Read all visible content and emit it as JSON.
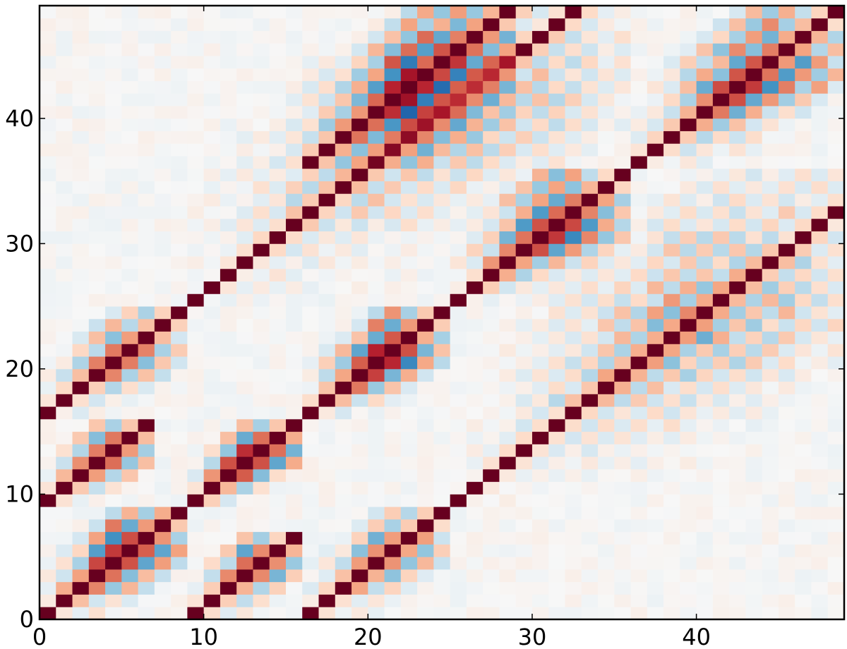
{
  "chart_data": {
    "type": "heatmap",
    "title": "",
    "xlabel": "",
    "ylabel": "",
    "n_cols": 49,
    "n_rows": 49,
    "xlim": [
      0,
      49
    ],
    "ylim": [
      0,
      49
    ],
    "x_ticks": [
      0,
      10,
      20,
      30,
      40
    ],
    "y_ticks": [
      0,
      10,
      20,
      30,
      40
    ],
    "colormap": "RdBu_r",
    "value_range": [
      -1,
      1
    ],
    "grid": false,
    "legend": "none",
    "segments": [
      {
        "x0": 0,
        "y0": 0,
        "len": 9,
        "step": 4,
        "amp": 0.75
      },
      {
        "x0": 0,
        "y0": 9,
        "len": 7,
        "step": 3,
        "amp": 0.6
      },
      {
        "x0": 0,
        "y0": 16,
        "len": 9,
        "step": 4,
        "amp": 0.55
      },
      {
        "x0": 9,
        "y0": 0,
        "len": 7,
        "step": 3,
        "amp": 0.6
      },
      {
        "x0": 9,
        "y0": 9,
        "len": 7,
        "step": 3,
        "amp": 0.75
      },
      {
        "x0": 9,
        "y0": 25,
        "len": 27,
        "step": 12,
        "amp": 0.45
      },
      {
        "x0": 16,
        "y0": 0,
        "len": 9,
        "step": 4,
        "amp": 0.55
      },
      {
        "x0": 16,
        "y0": 16,
        "len": 9,
        "step": 4,
        "amp": 0.75
      },
      {
        "x0": 16,
        "y0": 36,
        "len": 13,
        "step": 6,
        "amp": 0.5
      },
      {
        "x0": 25,
        "y0": 9,
        "len": 27,
        "step": 12,
        "amp": 0.45
      },
      {
        "x0": 25,
        "y0": 25,
        "len": 11,
        "step": 5,
        "amp": 0.75
      },
      {
        "x0": 36,
        "y0": 36,
        "len": 13,
        "step": 6,
        "amp": 0.75
      }
    ],
    "noise_amplitude": 0.12
  }
}
